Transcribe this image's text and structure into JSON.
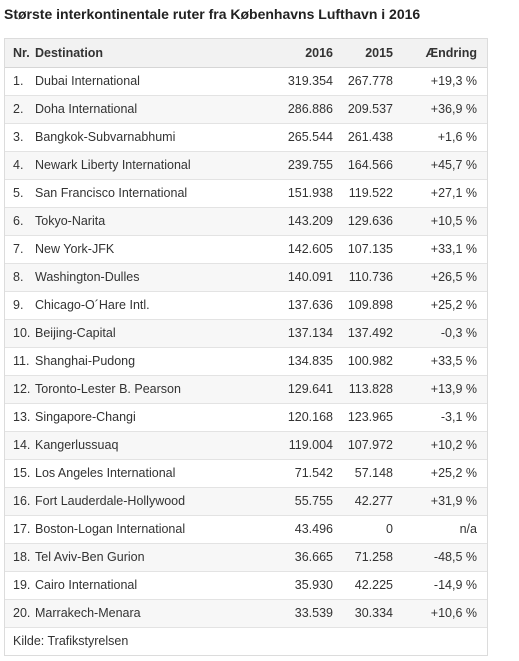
{
  "title": "Største interkontinentale ruter fra Københavns Lufthavn i 2016",
  "table": {
    "headers": {
      "nr": "Nr.",
      "destination": "Destination",
      "y2016": "2016",
      "y2015": "2015",
      "change": "Ændring"
    },
    "rows": [
      {
        "nr": "1.",
        "destination": "Dubai International",
        "y2016": "319.354",
        "y2015": "267.778",
        "change": "+19,3 %"
      },
      {
        "nr": "2.",
        "destination": "Doha International",
        "y2016": "286.886",
        "y2015": "209.537",
        "change": "+36,9 %"
      },
      {
        "nr": "3.",
        "destination": "Bangkok-Subvarnabhumi",
        "y2016": "265.544",
        "y2015": "261.438",
        "change": "+1,6 %"
      },
      {
        "nr": "4.",
        "destination": "Newark Liberty International",
        "y2016": "239.755",
        "y2015": "164.566",
        "change": "+45,7 %"
      },
      {
        "nr": "5.",
        "destination": "San Francisco International",
        "y2016": "151.938",
        "y2015": "119.522",
        "change": "+27,1 %"
      },
      {
        "nr": "6.",
        "destination": "Tokyo-Narita",
        "y2016": "143.209",
        "y2015": "129.636",
        "change": "+10,5 %"
      },
      {
        "nr": "7.",
        "destination": "New York-JFK",
        "y2016": "142.605",
        "y2015": "107.135",
        "change": "+33,1 %"
      },
      {
        "nr": "8.",
        "destination": "Washington-Dulles",
        "y2016": "140.091",
        "y2015": "110.736",
        "change": "+26,5 %"
      },
      {
        "nr": "9.",
        "destination": "Chicago-O´Hare Intl.",
        "y2016": "137.636",
        "y2015": "109.898",
        "change": "+25,2 %"
      },
      {
        "nr": "10.",
        "destination": "Beijing-Capital",
        "y2016": "137.134",
        "y2015": "137.492",
        "change": "-0,3 %"
      },
      {
        "nr": "11.",
        "destination": "Shanghai-Pudong",
        "y2016": "134.835",
        "y2015": "100.982",
        "change": "+33,5 %"
      },
      {
        "nr": "12.",
        "destination": "Toronto-Lester B. Pearson",
        "y2016": "129.641",
        "y2015": "113.828",
        "change": "+13,9 %"
      },
      {
        "nr": "13.",
        "destination": "Singapore-Changi",
        "y2016": "120.168",
        "y2015": "123.965",
        "change": "-3,1 %"
      },
      {
        "nr": "14.",
        "destination": "Kangerlussuaq",
        "y2016": "119.004",
        "y2015": "107.972",
        "change": "+10,2 %"
      },
      {
        "nr": "15.",
        "destination": "Los Angeles International",
        "y2016": "71.542",
        "y2015": "57.148",
        "change": "+25,2 %"
      },
      {
        "nr": "16.",
        "destination": "Fort Lauderdale-Hollywood",
        "y2016": "55.755",
        "y2015": "42.277",
        "change": "+31,9 %"
      },
      {
        "nr": "17.",
        "destination": "Boston-Logan International",
        "y2016": "43.496",
        "y2015": "0",
        "change": "n/a"
      },
      {
        "nr": "18.",
        "destination": "Tel Aviv-Ben Gurion",
        "y2016": "36.665",
        "y2015": "71.258",
        "change": "-48,5 %"
      },
      {
        "nr": "19.",
        "destination": "Cairo International",
        "y2016": "35.930",
        "y2015": "42.225",
        "change": "-14,9 %"
      },
      {
        "nr": "20.",
        "destination": "Marrakech-Menara",
        "y2016": "33.539",
        "y2015": "30.334",
        "change": "+10,6 %"
      }
    ],
    "source": "Kilde: Trafikstyrelsen"
  }
}
